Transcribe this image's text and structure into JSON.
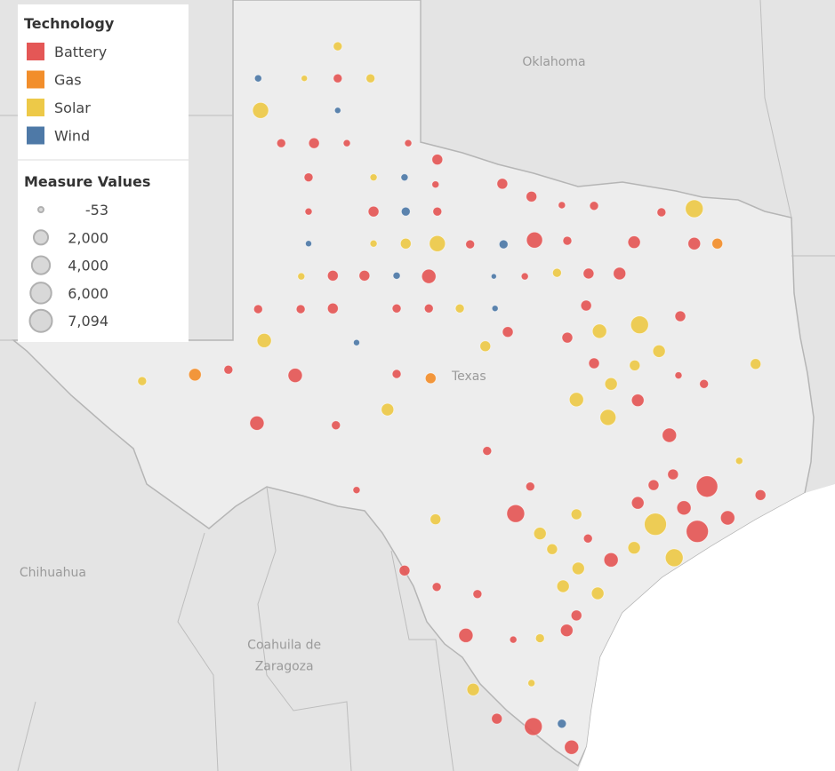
{
  "chart_data": {
    "type": "bubble-map",
    "legend_title": "Technology",
    "size_legend": {
      "title": "Measure Values",
      "values": [
        -53,
        {
          "value": 2000,
          "label": "2,000"
        },
        {
          "value": 4000,
          "label": "4,000"
        },
        {
          "value": 6000,
          "label": "6,000"
        },
        {
          "value": 7094,
          "label": "7,094"
        }
      ]
    },
    "map_labels": [
      {
        "text": "Oklahoma",
        "lon": -97.7,
        "lat": 35.64
      },
      {
        "text": "Texas",
        "lon": -99.1,
        "lat": 31.22
      },
      {
        "text": "Chihuahua",
        "lon": -105.95,
        "lat": 28.47
      },
      {
        "text": "Coahuila de",
        "lon": -102.14,
        "lat": 27.45
      },
      {
        "text": "Zaragoza",
        "lon": -102.14,
        "lat": 27.15
      }
    ],
    "series": [
      {
        "name": "Battery",
        "color": "#e45756",
        "points": [
          {
            "lon": -101.26,
            "lat": 35.46,
            "value": 310
          },
          {
            "lon": -102.19,
            "lat": 34.55,
            "value": 310
          },
          {
            "lon": -101.65,
            "lat": 34.55,
            "value": 710
          },
          {
            "lon": -101.11,
            "lat": 34.55,
            "value": 80
          },
          {
            "lon": -100.1,
            "lat": 34.55,
            "value": 80
          },
          {
            "lon": -99.62,
            "lat": 34.32,
            "value": 710
          },
          {
            "lon": -101.74,
            "lat": 34.07,
            "value": 310
          },
          {
            "lon": -99.65,
            "lat": 33.97,
            "value": 80
          },
          {
            "lon": -98.55,
            "lat": 33.98,
            "value": 710
          },
          {
            "lon": -98.07,
            "lat": 33.8,
            "value": 710
          },
          {
            "lon": -101.74,
            "lat": 33.59,
            "value": 80
          },
          {
            "lon": -100.67,
            "lat": 33.59,
            "value": 710
          },
          {
            "lon": -99.62,
            "lat": 33.59,
            "value": 310
          },
          {
            "lon": -97.57,
            "lat": 33.68,
            "value": 80
          },
          {
            "lon": -97.04,
            "lat": 33.67,
            "value": 310
          },
          {
            "lon": -95.93,
            "lat": 33.58,
            "value": 310
          },
          {
            "lon": -99.08,
            "lat": 33.13,
            "value": 310
          },
          {
            "lon": -98.02,
            "lat": 33.19,
            "value": 2830
          },
          {
            "lon": -97.48,
            "lat": 33.18,
            "value": 310
          },
          {
            "lon": -96.38,
            "lat": 33.16,
            "value": 1260
          },
          {
            "lon": -95.39,
            "lat": 33.14,
            "value": 1260
          },
          {
            "lon": -101.34,
            "lat": 32.69,
            "value": 710
          },
          {
            "lon": -100.82,
            "lat": 32.69,
            "value": 710
          },
          {
            "lon": -99.76,
            "lat": 32.68,
            "value": 1970
          },
          {
            "lon": -98.18,
            "lat": 32.68,
            "value": 80
          },
          {
            "lon": -97.13,
            "lat": 32.72,
            "value": 710
          },
          {
            "lon": -96.62,
            "lat": 32.72,
            "value": 1260
          },
          {
            "lon": -102.57,
            "lat": 32.22,
            "value": 310
          },
          {
            "lon": -101.87,
            "lat": 32.22,
            "value": 310
          },
          {
            "lon": -101.34,
            "lat": 32.23,
            "value": 710
          },
          {
            "lon": -100.29,
            "lat": 32.23,
            "value": 310
          },
          {
            "lon": -99.76,
            "lat": 32.23,
            "value": 310
          },
          {
            "lon": -97.17,
            "lat": 32.27,
            "value": 710
          },
          {
            "lon": -95.62,
            "lat": 32.12,
            "value": 710
          },
          {
            "lon": -98.46,
            "lat": 31.9,
            "value": 710
          },
          {
            "lon": -97.48,
            "lat": 31.82,
            "value": 710
          },
          {
            "lon": -103.06,
            "lat": 31.37,
            "value": 310
          },
          {
            "lon": -101.96,
            "lat": 31.29,
            "value": 1970
          },
          {
            "lon": -100.29,
            "lat": 31.31,
            "value": 310
          },
          {
            "lon": -97.04,
            "lat": 31.46,
            "value": 710
          },
          {
            "lon": -96.32,
            "lat": 30.94,
            "value": 1260
          },
          {
            "lon": -102.59,
            "lat": 30.62,
            "value": 1970
          },
          {
            "lon": -101.29,
            "lat": 30.59,
            "value": 310
          },
          {
            "lon": -95.8,
            "lat": 30.45,
            "value": 1970
          },
          {
            "lon": -98.8,
            "lat": 30.23,
            "value": 310
          },
          {
            "lon": -96.06,
            "lat": 29.75,
            "value": 710
          },
          {
            "lon": -95.74,
            "lat": 29.9,
            "value": 710
          },
          {
            "lon": -95.18,
            "lat": 29.73,
            "value": 6370
          },
          {
            "lon": -94.3,
            "lat": 29.61,
            "value": 710
          },
          {
            "lon": -98.33,
            "lat": 29.35,
            "value": 3850
          },
          {
            "lon": -96.32,
            "lat": 29.5,
            "value": 1260
          },
          {
            "lon": -95.56,
            "lat": 29.43,
            "value": 1970
          },
          {
            "lon": -94.84,
            "lat": 29.29,
            "value": 1970
          },
          {
            "lon": -95.34,
            "lat": 29.1,
            "value": 7000
          },
          {
            "lon": -100.16,
            "lat": 28.55,
            "value": 710
          },
          {
            "lon": -96.76,
            "lat": 28.7,
            "value": 1970
          },
          {
            "lon": -97.33,
            "lat": 27.92,
            "value": 710
          },
          {
            "lon": -99.15,
            "lat": 27.64,
            "value": 1970
          },
          {
            "lon": -97.49,
            "lat": 27.71,
            "value": 1260
          },
          {
            "lon": -98.64,
            "lat": 26.47,
            "value": 710
          },
          {
            "lon": -98.04,
            "lat": 26.36,
            "value": 3850
          },
          {
            "lon": -97.41,
            "lat": 26.07,
            "value": 1970
          },
          {
            "lon": -100.95,
            "lat": 29.68,
            "value": 80
          },
          {
            "lon": -98.09,
            "lat": 29.73,
            "value": 310
          },
          {
            "lon": -97.14,
            "lat": 29.0,
            "value": 310
          },
          {
            "lon": -98.96,
            "lat": 28.22,
            "value": 310
          },
          {
            "lon": -99.63,
            "lat": 28.32,
            "value": 310
          },
          {
            "lon": -98.37,
            "lat": 27.58,
            "value": 80
          },
          {
            "lon": -95.65,
            "lat": 31.29,
            "value": 80
          },
          {
            "lon": -95.23,
            "lat": 31.17,
            "value": 310
          }
        ]
      },
      {
        "name": "Gas",
        "color": "#f28e2b",
        "points": [
          {
            "lon": -95.01,
            "lat": 33.14,
            "value": 710
          },
          {
            "lon": -103.61,
            "lat": 31.3,
            "value": 1260
          },
          {
            "lon": -99.73,
            "lat": 31.25,
            "value": 710
          }
        ]
      },
      {
        "name": "Solar",
        "color": "#edc948",
        "points": [
          {
            "lon": -101.26,
            "lat": 35.91,
            "value": 310
          },
          {
            "lon": -101.81,
            "lat": 35.46,
            "value": 20
          },
          {
            "lon": -100.72,
            "lat": 35.46,
            "value": 310
          },
          {
            "lon": -102.53,
            "lat": 35.01,
            "value": 2830
          },
          {
            "lon": -100.67,
            "lat": 34.07,
            "value": 80
          },
          {
            "lon": -95.39,
            "lat": 33.63,
            "value": 3850
          },
          {
            "lon": -100.67,
            "lat": 33.14,
            "value": 80
          },
          {
            "lon": -100.14,
            "lat": 33.14,
            "value": 710
          },
          {
            "lon": -99.62,
            "lat": 33.14,
            "value": 2830
          },
          {
            "lon": -101.86,
            "lat": 32.68,
            "value": 80
          },
          {
            "lon": -97.65,
            "lat": 32.73,
            "value": 310
          },
          {
            "lon": -99.25,
            "lat": 32.23,
            "value": 310
          },
          {
            "lon": -96.29,
            "lat": 32.0,
            "value": 3850
          },
          {
            "lon": -102.47,
            "lat": 31.78,
            "value": 1970
          },
          {
            "lon": -98.83,
            "lat": 31.7,
            "value": 710
          },
          {
            "lon": -96.95,
            "lat": 31.91,
            "value": 1970
          },
          {
            "lon": -95.97,
            "lat": 31.63,
            "value": 1260
          },
          {
            "lon": -104.48,
            "lat": 31.21,
            "value": 310
          },
          {
            "lon": -96.37,
            "lat": 31.43,
            "value": 710
          },
          {
            "lon": -94.38,
            "lat": 31.45,
            "value": 710
          },
          {
            "lon": -100.44,
            "lat": 30.81,
            "value": 1260
          },
          {
            "lon": -97.33,
            "lat": 30.95,
            "value": 1970
          },
          {
            "lon": -96.76,
            "lat": 31.17,
            "value": 1260
          },
          {
            "lon": -96.81,
            "lat": 30.7,
            "value": 2830
          },
          {
            "lon": -94.65,
            "lat": 30.09,
            "value": 80
          },
          {
            "lon": -97.33,
            "lat": 29.34,
            "value": 710
          },
          {
            "lon": -99.65,
            "lat": 29.27,
            "value": 710
          },
          {
            "lon": -96.03,
            "lat": 29.2,
            "value": 7000
          },
          {
            "lon": -97.93,
            "lat": 29.07,
            "value": 1260
          },
          {
            "lon": -96.38,
            "lat": 28.87,
            "value": 1260
          },
          {
            "lon": -97.73,
            "lat": 28.85,
            "value": 710
          },
          {
            "lon": -95.72,
            "lat": 28.73,
            "value": 3850
          },
          {
            "lon": -97.3,
            "lat": 28.58,
            "value": 1260
          },
          {
            "lon": -97.55,
            "lat": 28.33,
            "value": 1260
          },
          {
            "lon": -96.98,
            "lat": 28.23,
            "value": 1260
          },
          {
            "lon": -97.93,
            "lat": 27.6,
            "value": 310
          },
          {
            "lon": -99.03,
            "lat": 26.88,
            "value": 1260
          },
          {
            "lon": -98.07,
            "lat": 26.97,
            "value": 80
          }
        ]
      },
      {
        "name": "Wind",
        "color": "#4e79a7",
        "points": [
          {
            "lon": -102.57,
            "lat": 35.46,
            "value": 80
          },
          {
            "lon": -101.26,
            "lat": 35.01,
            "value": 20
          },
          {
            "lon": -100.16,
            "lat": 34.07,
            "value": 80
          },
          {
            "lon": -100.14,
            "lat": 33.59,
            "value": 310
          },
          {
            "lon": -101.74,
            "lat": 33.14,
            "value": 20
          },
          {
            "lon": -98.53,
            "lat": 33.13,
            "value": 310
          },
          {
            "lon": -100.29,
            "lat": 32.69,
            "value": 80
          },
          {
            "lon": -98.69,
            "lat": 32.68,
            "value": -53
          },
          {
            "lon": -98.67,
            "lat": 32.23,
            "value": 20
          },
          {
            "lon": -100.95,
            "lat": 31.75,
            "value": 20
          },
          {
            "lon": -97.57,
            "lat": 26.4,
            "value": 310
          }
        ]
      }
    ]
  }
}
